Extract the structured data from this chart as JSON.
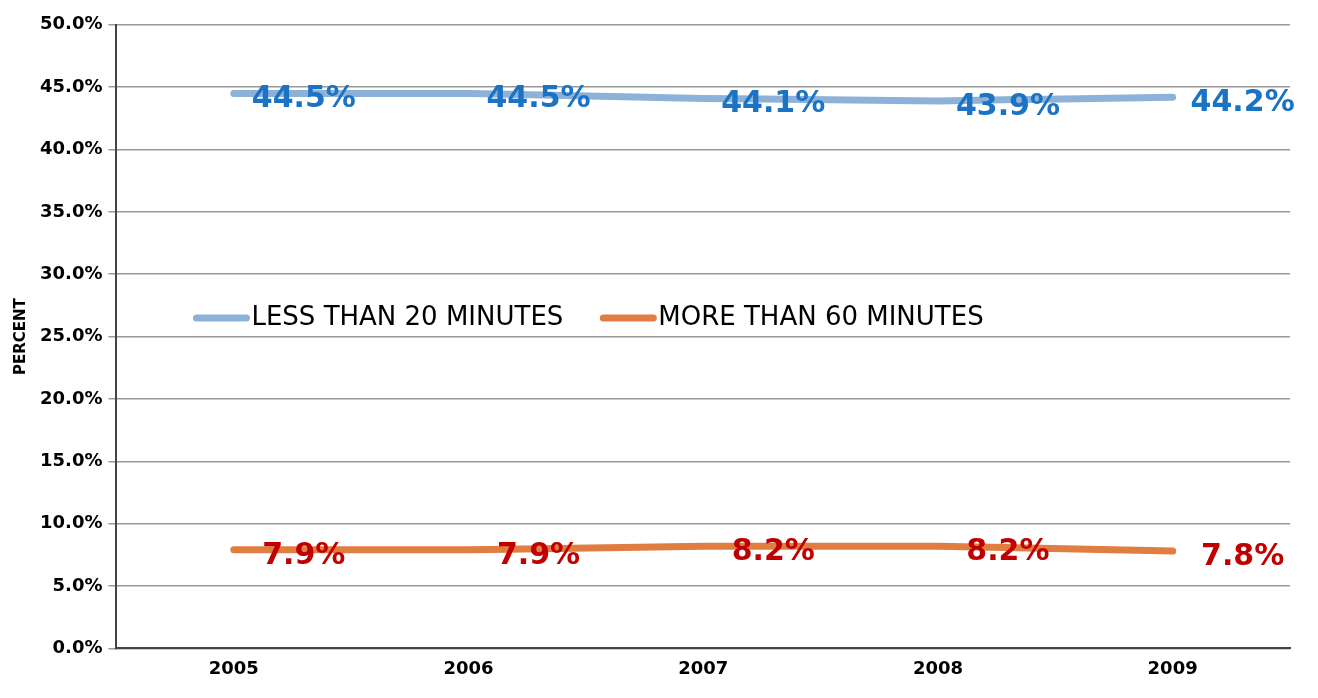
{
  "chart_data": {
    "type": "line",
    "ylabel": "PERCENT",
    "categories": [
      "2005",
      "2006",
      "2007",
      "2008",
      "2009"
    ],
    "series": [
      {
        "name": "LESS THAN 20 MINUTES",
        "color": "#8eb1d8",
        "values": [
          44.5,
          44.5,
          44.1,
          43.9,
          44.2
        ],
        "value_labels": [
          "44.5%",
          "44.5%",
          "44.1%",
          "43.9%",
          "44.2%"
        ]
      },
      {
        "name": "MORE THAN 60 MINUTES",
        "color": "#e07d40",
        "values": [
          7.9,
          7.9,
          8.2,
          8.2,
          7.8
        ],
        "value_labels": [
          "7.9%",
          "7.9%",
          "8.2%",
          "8.2%",
          "7.8%"
        ]
      }
    ],
    "ylim": [
      0,
      50
    ],
    "yticks": [
      {
        "value": 0,
        "label": "0.0%"
      },
      {
        "value": 5,
        "label": "5.0%"
      },
      {
        "value": 10,
        "label": "10.0%"
      },
      {
        "value": 15,
        "label": "15.0%"
      },
      {
        "value": 20,
        "label": "20.0%"
      },
      {
        "value": 25,
        "label": "25.0%"
      },
      {
        "value": 30,
        "label": "30.0%"
      },
      {
        "value": 35,
        "label": "35.0%"
      },
      {
        "value": 40,
        "label": "40.0%"
      },
      {
        "value": 45,
        "label": "45.0%"
      },
      {
        "value": 50,
        "label": "50.0%"
      }
    ],
    "grid": "y",
    "legend": "left",
    "marker": "none",
    "line_style": "solid"
  }
}
